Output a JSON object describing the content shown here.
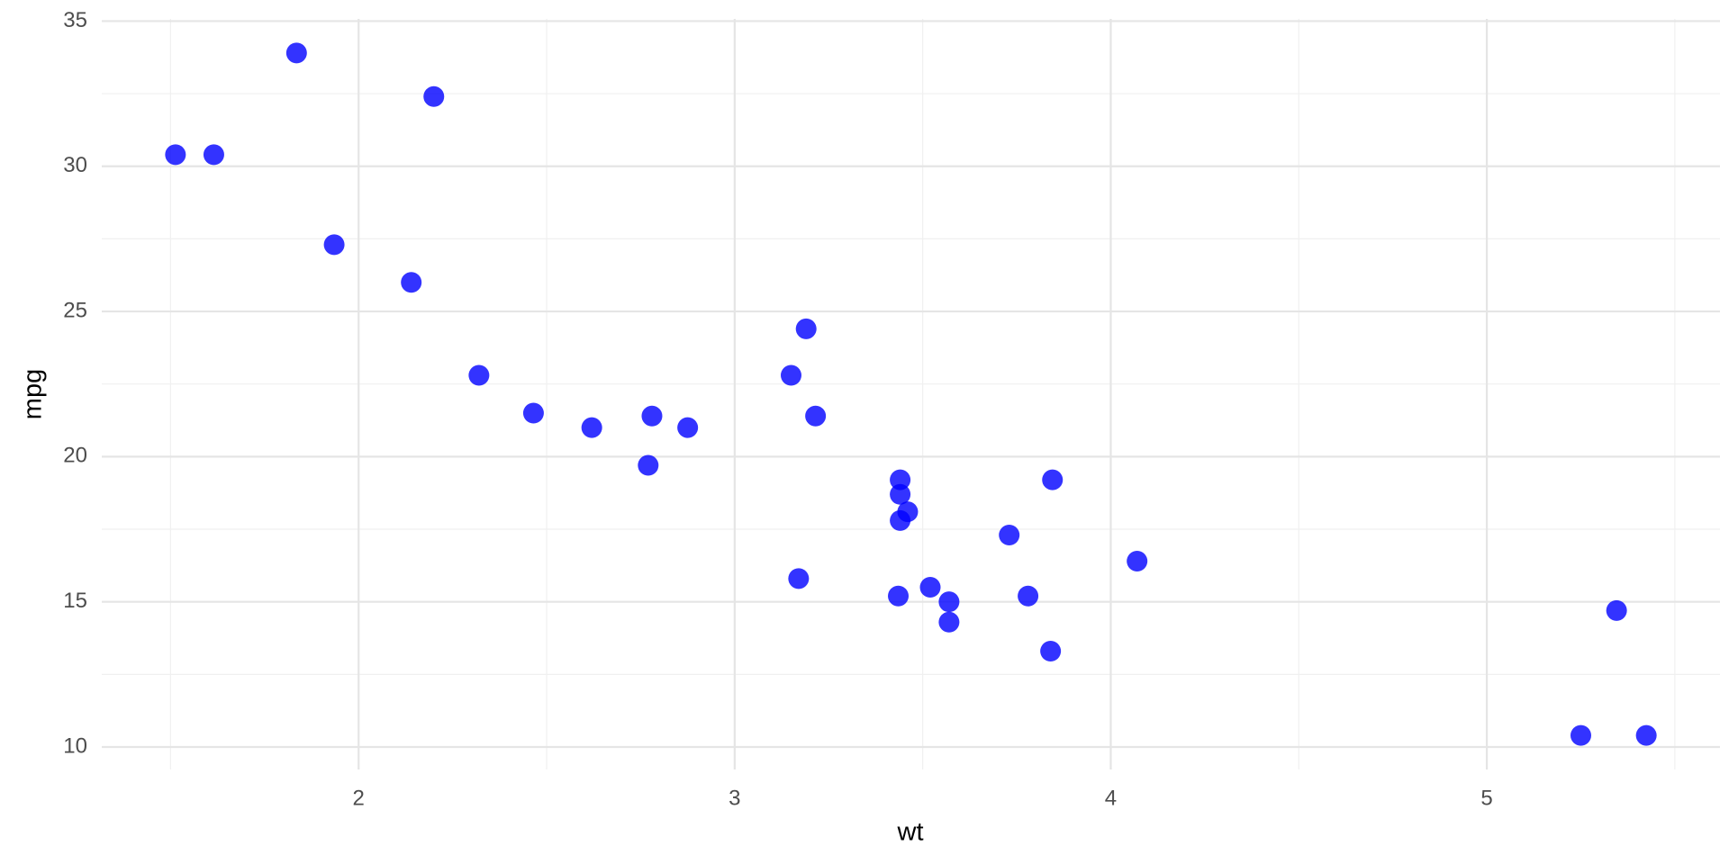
{
  "chart_data": {
    "type": "scatter",
    "x_label": "wt",
    "y_label": "mpg",
    "x": [
      2.62,
      2.875,
      2.32,
      3.215,
      3.44,
      3.46,
      3.57,
      3.19,
      3.15,
      3.44,
      3.44,
      4.07,
      3.73,
      3.78,
      5.25,
      5.424,
      5.345,
      2.2,
      1.615,
      1.835,
      2.465,
      3.52,
      3.435,
      3.84,
      3.845,
      1.935,
      2.14,
      1.513,
      3.17,
      2.77,
      3.57,
      2.78
    ],
    "values": [
      21.0,
      21.0,
      22.8,
      21.4,
      18.7,
      18.1,
      14.3,
      24.4,
      22.8,
      19.2,
      17.8,
      16.4,
      17.3,
      15.2,
      10.4,
      10.4,
      14.7,
      32.4,
      30.4,
      33.9,
      21.5,
      15.5,
      15.2,
      13.3,
      19.2,
      27.3,
      26.0,
      30.4,
      15.8,
      19.7,
      15.0,
      21.4
    ],
    "color": "#0000ff",
    "xlim": [
      1.317,
      5.62
    ],
    "ylim": [
      9.225,
      35.075
    ],
    "xticks": [
      2,
      3,
      4,
      5
    ],
    "yticks": [
      10,
      15,
      20,
      25,
      30,
      35
    ],
    "x_minor_ticks": [
      1.5,
      2.5,
      3.5,
      4.5,
      5.5
    ],
    "y_minor_ticks": [
      12.5,
      17.5,
      22.5,
      27.5,
      32.5
    ],
    "grid": true
  }
}
